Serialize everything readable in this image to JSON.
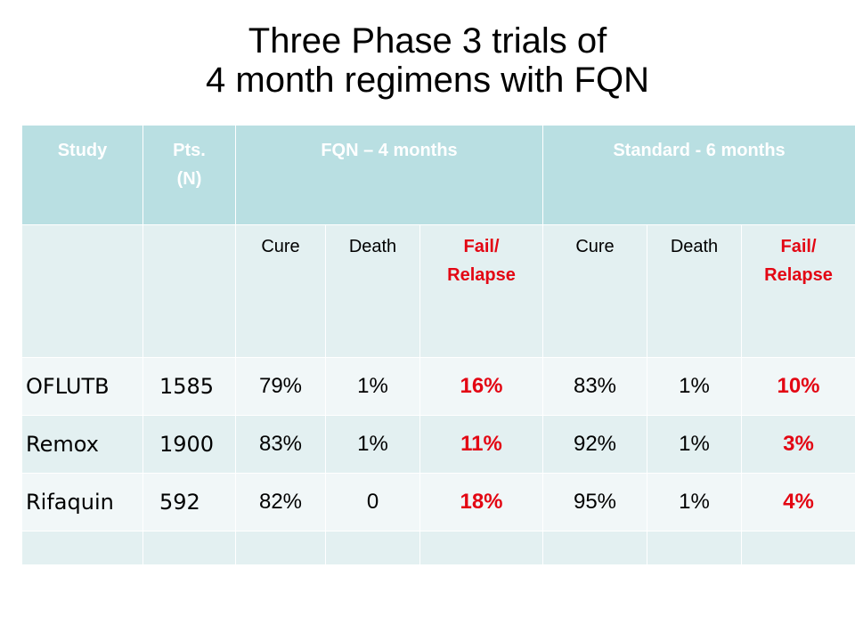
{
  "title_line1": "Three Phase 3 trials of",
  "title_line2": "4 month regimens with FQN",
  "header": {
    "study": "Study",
    "pts_line1": "Pts.",
    "pts_line2": "(N)",
    "fqn": "FQN – 4 months",
    "standard": "Standard  - 6 months"
  },
  "subheader": {
    "cure": "Cure",
    "death": "Death",
    "fail_line1": "Fail/",
    "fail_line2": "Relapse"
  },
  "rows": [
    {
      "study": "OFLUTB",
      "pts": "1585",
      "fqn_cure": "79%",
      "fqn_death": "1%",
      "fqn_fail": "16%",
      "std_cure": "83%",
      "std_death": "1%",
      "std_fail": "10%"
    },
    {
      "study": "Remox",
      "pts": "1900",
      "fqn_cure": "83%",
      "fqn_death": "1%",
      "fqn_fail": "11%",
      "std_cure": "92%",
      "std_death": "1%",
      "std_fail": "3%"
    },
    {
      "study": "Rifaquin",
      "pts": "592",
      "fqn_cure": "82%",
      "fqn_death": "0",
      "fqn_fail": "18%",
      "std_cure": "95%",
      "std_death": "1%",
      "std_fail": "4%"
    }
  ],
  "colors": {
    "header_bg": "#b9dfe2",
    "row_light": "#e3f0f1",
    "row_lighter": "#f1f7f8",
    "fail_red": "#e30613"
  }
}
